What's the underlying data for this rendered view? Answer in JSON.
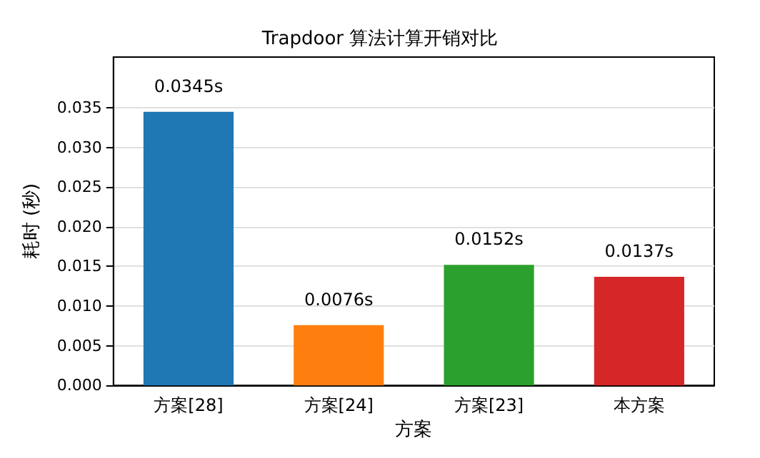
{
  "chart_data": {
    "type": "bar",
    "title": "Trapdoor 算法计算开销对比",
    "xlabel": "方案",
    "ylabel": "耗时 (秒)",
    "categories": [
      "方案[28]",
      "方案[24]",
      "方案[23]",
      "本方案"
    ],
    "values": [
      0.0345,
      0.0076,
      0.0152,
      0.0137
    ],
    "colors": [
      "#1f77b4",
      "#ff7f0e",
      "#2ca02c",
      "#d62728"
    ],
    "value_labels": [
      "0.0345s",
      "0.0076s",
      "0.0152s",
      "0.0137s"
    ],
    "ylim": [
      0,
      0.0414
    ],
    "yticks": [
      {
        "value": 0,
        "label": "0.000"
      },
      {
        "value": 0.005,
        "label": "0.005"
      },
      {
        "value": 0.01,
        "label": "0.010"
      },
      {
        "value": 0.015,
        "label": "0.015"
      },
      {
        "value": 0.02,
        "label": "0.020"
      },
      {
        "value": 0.025,
        "label": "0.025"
      },
      {
        "value": 0.03,
        "label": "0.030"
      },
      {
        "value": 0.035,
        "label": "0.035"
      }
    ],
    "grid": "y"
  }
}
